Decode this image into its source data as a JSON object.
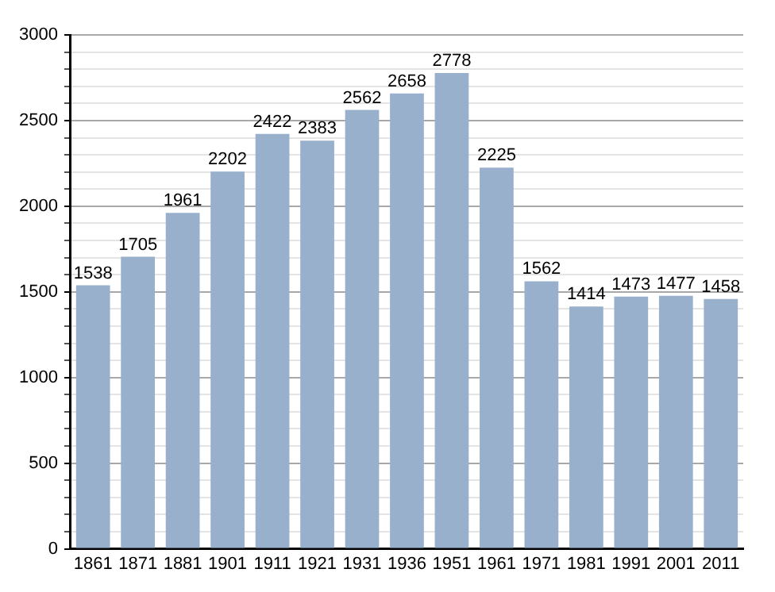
{
  "chart_data": {
    "type": "bar",
    "categories": [
      "1861",
      "1871",
      "1881",
      "1901",
      "1911",
      "1921",
      "1931",
      "1936",
      "1951",
      "1961",
      "1971",
      "1981",
      "1991",
      "2001",
      "2011"
    ],
    "values": [
      1538,
      1705,
      1961,
      2202,
      2422,
      2383,
      2562,
      2658,
      2778,
      2225,
      1562,
      1414,
      1473,
      1477,
      1458
    ],
    "color": "#98b0cc",
    "ylim": [
      0,
      3000
    ],
    "yticks": [
      0,
      {
        "value": 100,
        "label": null
      },
      {
        "value": 200,
        "label": null
      },
      {
        "value": 300,
        "label": null
      },
      {
        "value": 400,
        "label": null
      },
      500,
      {
        "value": 600,
        "label": null
      },
      {
        "value": 700,
        "label": null
      },
      {
        "value": 800,
        "label": null
      },
      {
        "value": 900,
        "label": null
      },
      1000,
      {
        "value": 1100,
        "label": null
      },
      {
        "value": 1200,
        "label": null
      },
      {
        "value": 1300,
        "label": null
      },
      {
        "value": 1400,
        "label": null
      },
      1500,
      {
        "value": 1600,
        "label": null
      },
      {
        "value": 1700,
        "label": null
      },
      {
        "value": 1800,
        "label": null
      },
      {
        "value": 1900,
        "label": null
      },
      2000,
      {
        "value": 2100,
        "label": null
      },
      {
        "value": 2200,
        "label": null
      },
      {
        "value": 2300,
        "label": null
      },
      {
        "value": 2400,
        "label": null
      },
      2500,
      {
        "value": 2600,
        "label": null
      },
      {
        "value": 2700,
        "label": null
      },
      {
        "value": 2800,
        "label": null
      },
      {
        "value": 2900,
        "label": null
      },
      3000
    ],
    "grid": "y",
    "data_labels": true
  }
}
